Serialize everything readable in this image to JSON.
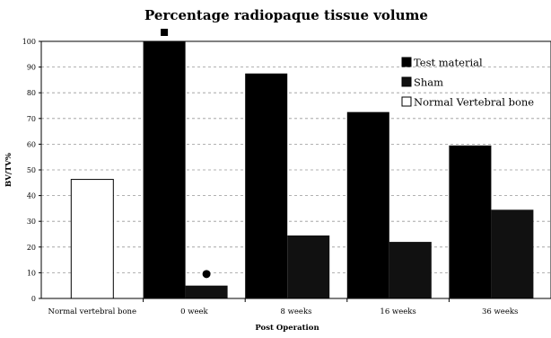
{
  "chart_data": {
    "type": "bar",
    "title": "Percentage radiopaque tissue volume",
    "xlabel": "Post Operation",
    "ylabel": "BV/TV%",
    "ylim": [
      0,
      100
    ],
    "yticks": [
      "0",
      "10",
      "20",
      "30",
      "40",
      "50",
      "60",
      "70",
      "80",
      "90",
      "100"
    ],
    "grid": true,
    "legend_position": "top-right",
    "categories": [
      "Normal vertebral bone",
      "0 week",
      "8 weeks",
      "16 weeks",
      "36 weeks"
    ],
    "series": [
      {
        "name": "Test material",
        "color": "#000000",
        "values": [
          null,
          100,
          87.5,
          72.5,
          59.5
        ]
      },
      {
        "name": "Sham",
        "color": "#111111",
        "values": [
          null,
          5,
          24.5,
          22,
          34.5
        ]
      },
      {
        "name": "Normal Vertebral bone",
        "color": "#ffffff",
        "values": [
          46.3,
          null,
          null,
          null,
          null
        ]
      }
    ],
    "annotations": [
      {
        "category": "0 week",
        "series": "Test material",
        "symbol": "square",
        "y": 103.5
      },
      {
        "category": "0 week",
        "series": "Sham",
        "symbol": "circle",
        "y": 9.5
      }
    ]
  }
}
